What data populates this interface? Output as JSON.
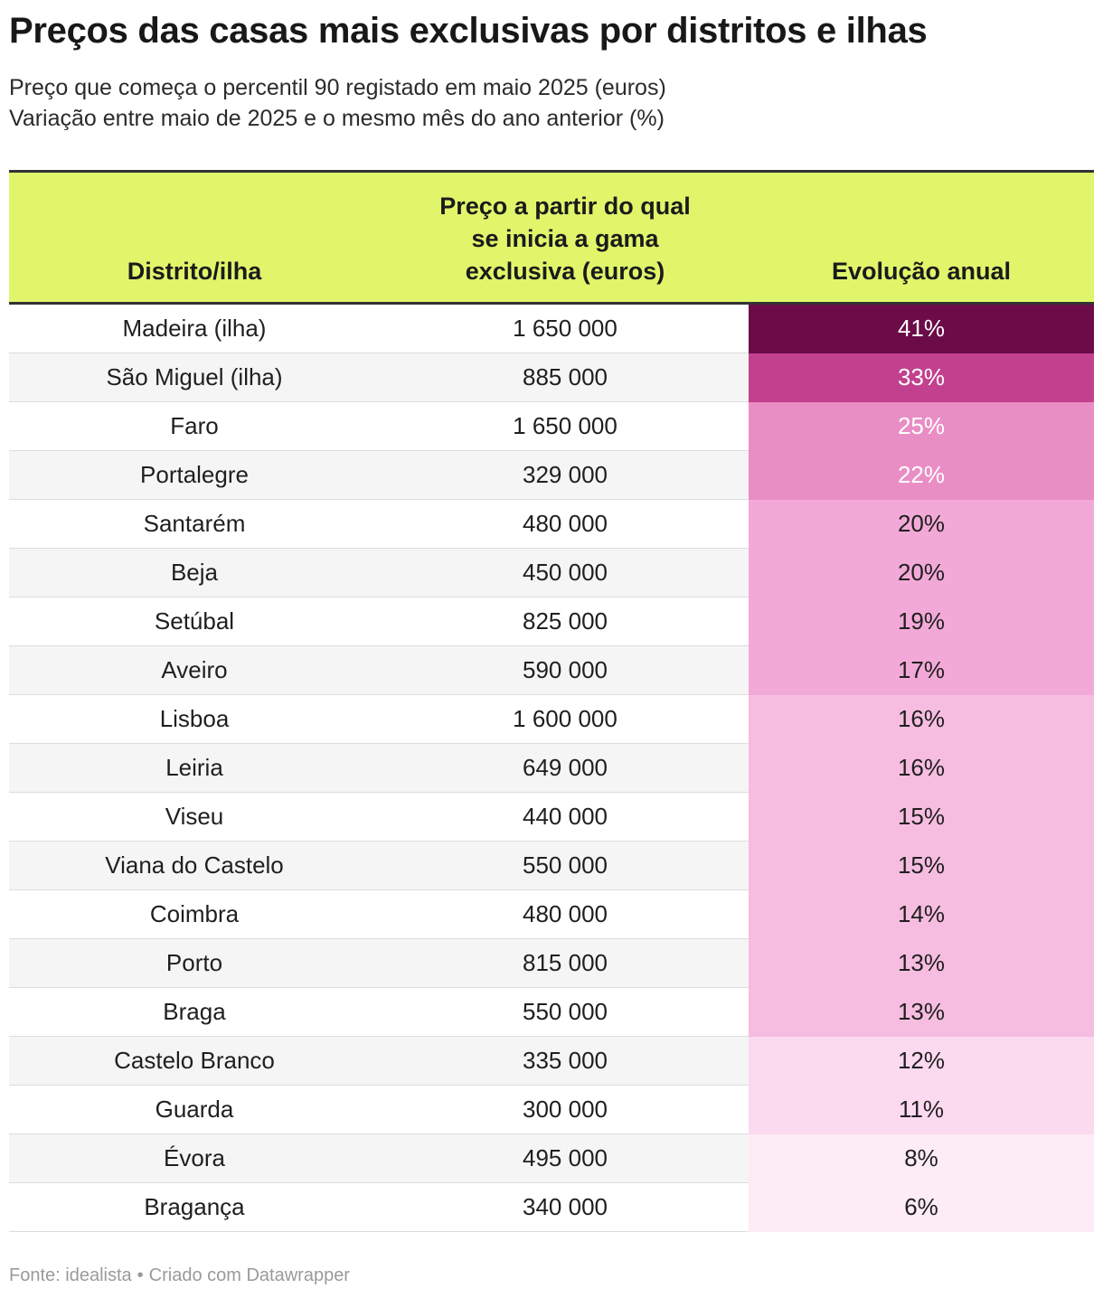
{
  "title": "Preços das casas mais exclusivas por distritos e ilhas",
  "subtitle_1": "Preço que começa o percentil 90 registado em maio 2025 (euros)",
  "subtitle_2": "Variação entre maio de 2025 e o mesmo mês do ano anterior (%)",
  "colors": {
    "header_bg": "#e1f56b",
    "heat_scale": [
      "#fdebf6",
      "#fbd9ee",
      "#f6bde0",
      "#f3a9d7",
      "#e98ec5",
      "#d862a9",
      "#c2418f",
      "#a31d78",
      "#6b0c48"
    ]
  },
  "chart_data": {
    "type": "table",
    "title": "Preços das casas mais exclusivas por distritos e ilhas",
    "columns": [
      "Distrito/ilha",
      "Preço a partir do qual\nse inicia a gama\nexclusiva (euros)",
      "Evolução anual"
    ],
    "rows": [
      {
        "district": "Madeira (ilha)",
        "price": "1 650 000",
        "change": "41%",
        "change_value": 41
      },
      {
        "district": "São Miguel (ilha)",
        "price": "885 000",
        "change": "33%",
        "change_value": 33
      },
      {
        "district": "Faro",
        "price": "1 650 000",
        "change": "25%",
        "change_value": 25
      },
      {
        "district": "Portalegre",
        "price": "329 000",
        "change": "22%",
        "change_value": 22
      },
      {
        "district": "Santarém",
        "price": "480 000",
        "change": "20%",
        "change_value": 20
      },
      {
        "district": "Beja",
        "price": "450 000",
        "change": "20%",
        "change_value": 20
      },
      {
        "district": "Setúbal",
        "price": "825 000",
        "change": "19%",
        "change_value": 19
      },
      {
        "district": "Aveiro",
        "price": "590 000",
        "change": "17%",
        "change_value": 17
      },
      {
        "district": "Lisboa",
        "price": "1 600 000",
        "change": "16%",
        "change_value": 16
      },
      {
        "district": "Leiria",
        "price": "649 000",
        "change": "16%",
        "change_value": 16
      },
      {
        "district": "Viseu",
        "price": "440 000",
        "change": "15%",
        "change_value": 15
      },
      {
        "district": "Viana do Castelo",
        "price": "550 000",
        "change": "15%",
        "change_value": 15
      },
      {
        "district": "Coimbra",
        "price": "480 000",
        "change": "14%",
        "change_value": 14
      },
      {
        "district": "Porto",
        "price": "815 000",
        "change": "13%",
        "change_value": 13
      },
      {
        "district": "Braga",
        "price": "550 000",
        "change": "13%",
        "change_value": 13
      },
      {
        "district": "Castelo Branco",
        "price": "335 000",
        "change": "12%",
        "change_value": 12
      },
      {
        "district": "Guarda",
        "price": "300 000",
        "change": "11%",
        "change_value": 11
      },
      {
        "district": "Évora",
        "price": "495 000",
        "change": "8%",
        "change_value": 8
      },
      {
        "district": "Bragança",
        "price": "340 000",
        "change": "6%",
        "change_value": 6
      }
    ]
  },
  "footer": {
    "source": "Fonte: idealista",
    "separator": "•",
    "credit": "Criado com Datawrapper"
  }
}
